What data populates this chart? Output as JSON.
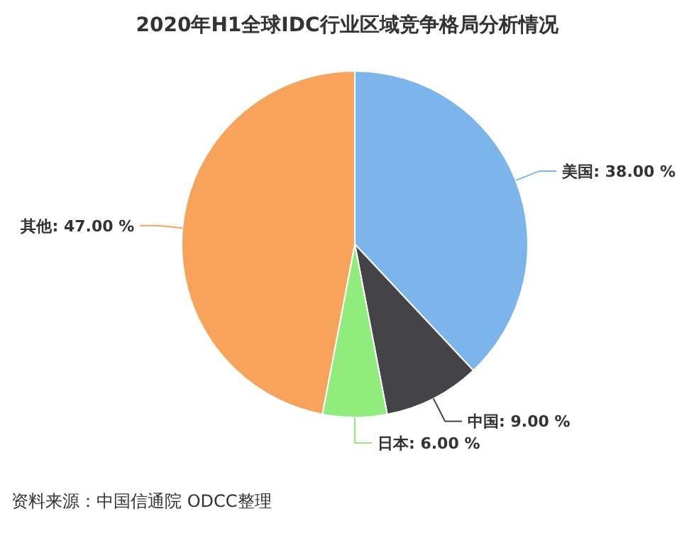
{
  "chart_data": {
    "type": "pie",
    "title": "2020年H1全球IDC行业区域竞争格局分析情况",
    "categories": [
      "美国",
      "中国",
      "日本",
      "其他"
    ],
    "values": [
      38,
      9,
      6,
      47
    ],
    "colors": [
      "#7cb5ec",
      "#434348",
      "#90ed7d",
      "#f7a35c"
    ],
    "value_labels": [
      ": 38.00 %",
      ": 9.00 %",
      ": 6.00 %",
      ": 47.00 %"
    ],
    "annotations": [
      "资料来源：中国信通院 ODCC整理"
    ]
  }
}
